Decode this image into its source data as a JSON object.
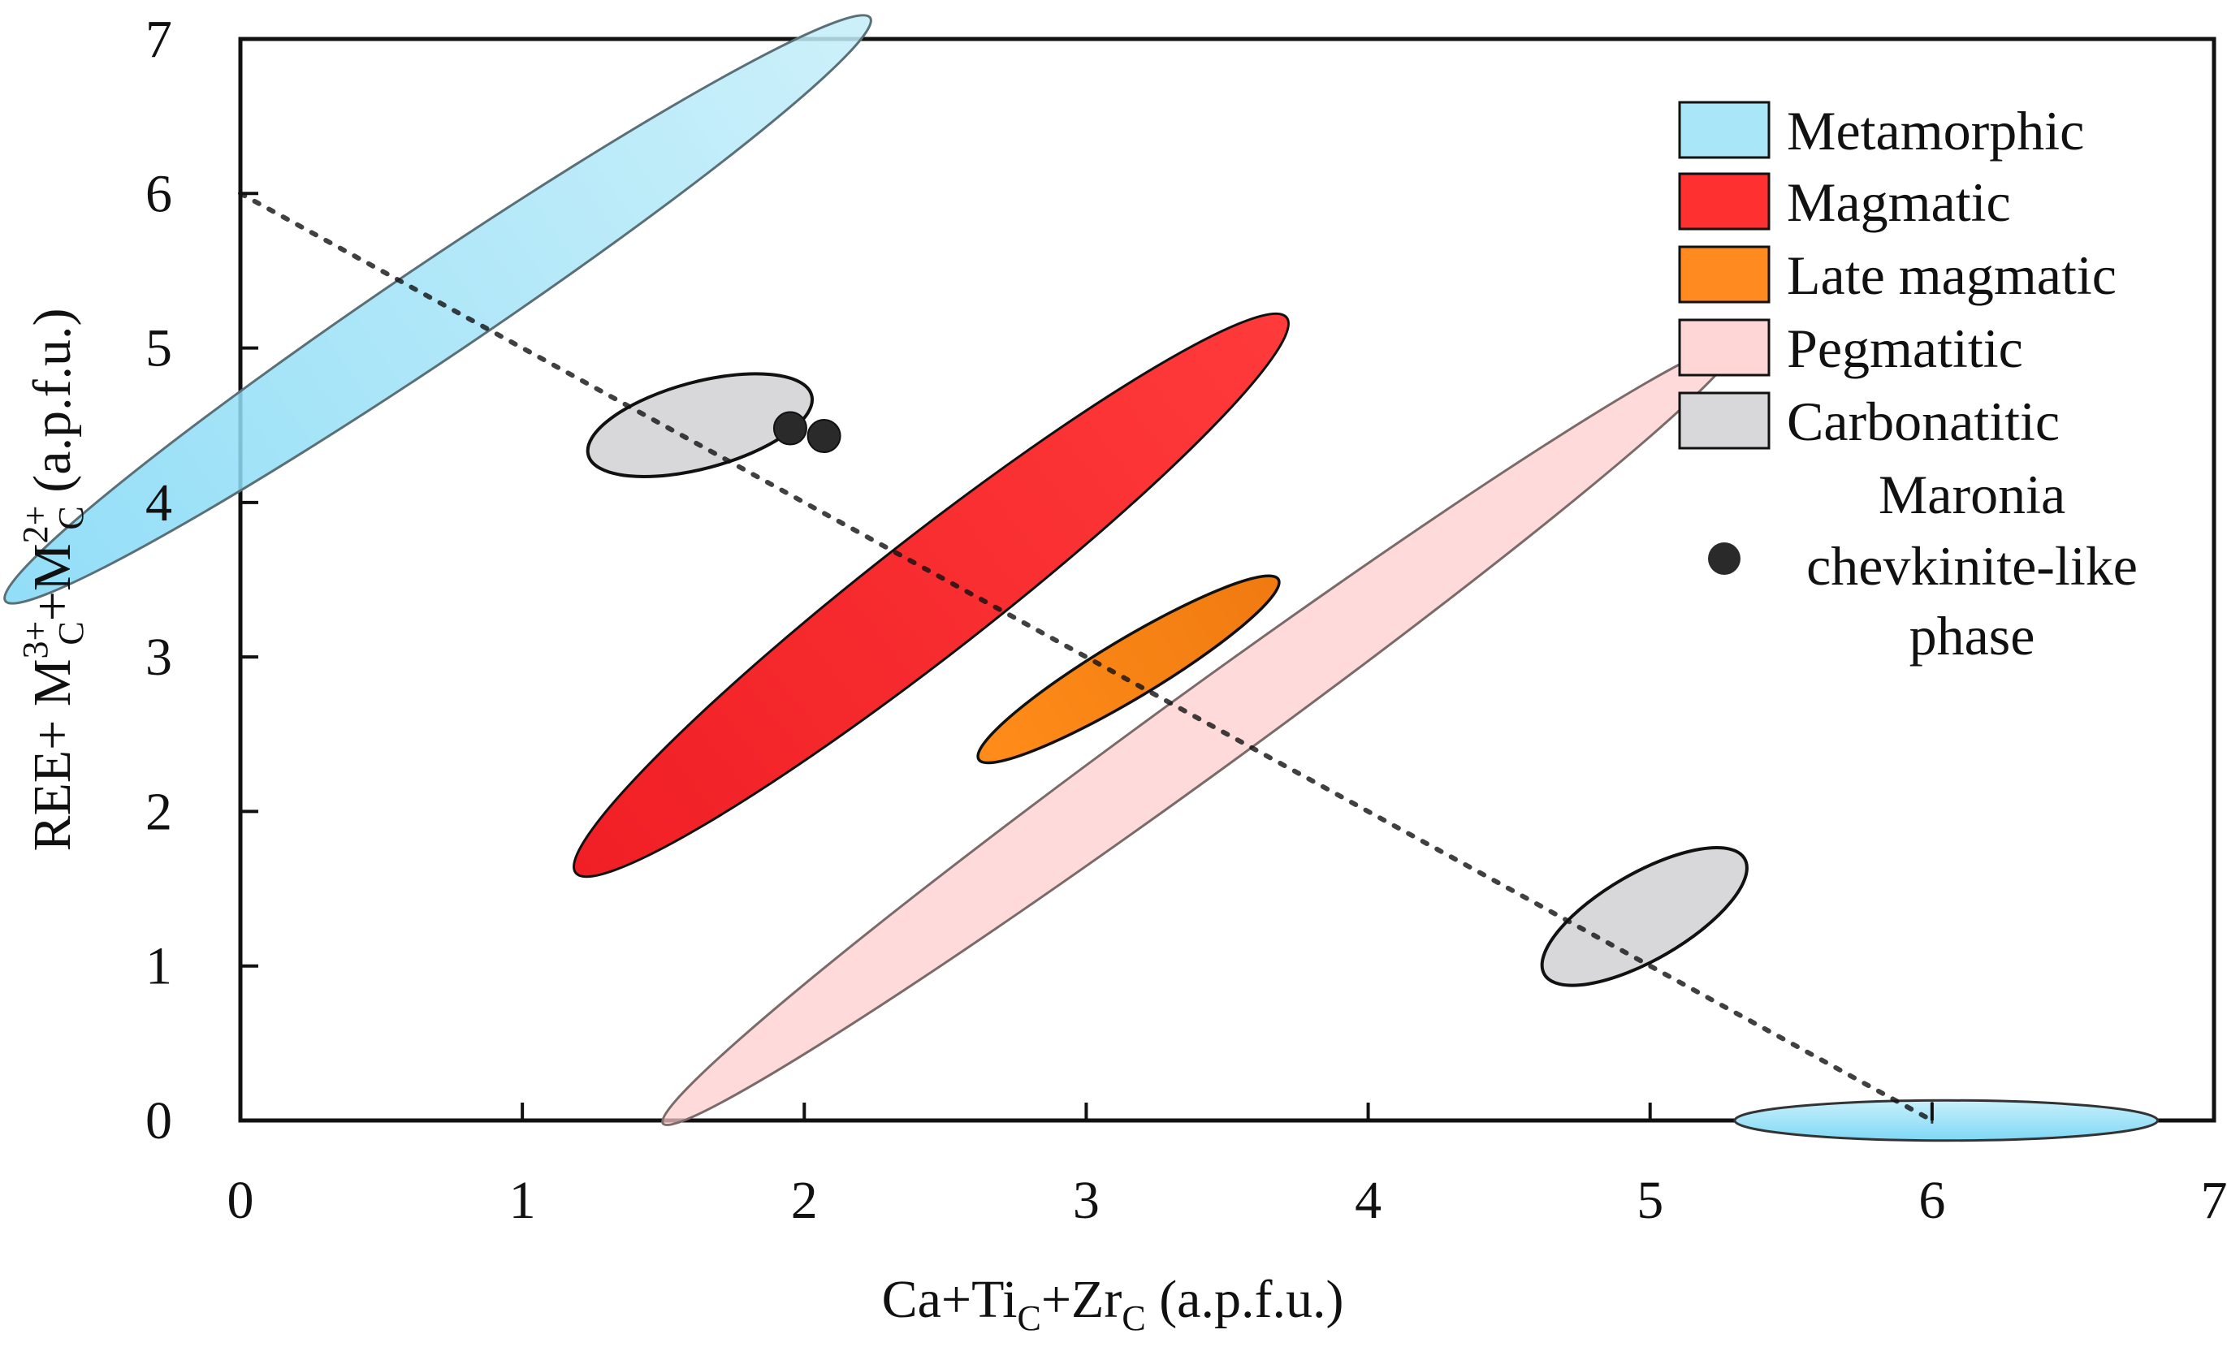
{
  "chart_data": {
    "type": "scatter",
    "title": "",
    "xlabel": {
      "base": "Ca+Ti",
      "sub1": "C",
      "mid": "+Zr",
      "sub2": "C",
      "unit": " (a.p.f.u.)"
    },
    "ylabel": {
      "t1": "REE+ M",
      "sup1": "3+",
      "sub1": "C",
      "t2": "+M",
      "sup2": "2+",
      "sub2": "C",
      "unit": " (a.p.f.u.)"
    },
    "xlim": [
      0,
      7
    ],
    "ylim": [
      0,
      7
    ],
    "xticks": [
      "0",
      "1",
      "2",
      "3",
      "4",
      "5",
      "6",
      "7"
    ],
    "yticks": [
      "0",
      "1",
      "2",
      "3",
      "4",
      "5",
      "6",
      "7"
    ],
    "trend_line": {
      "style": "dotted",
      "from": [
        0,
        6
      ],
      "to": [
        6,
        0
      ]
    },
    "fields": [
      {
        "name": "Metamorphic",
        "cx": 0.7,
        "cy": 5.25,
        "rx": 1.85,
        "ry": 0.3,
        "angle_deg": -34,
        "color": "#a8e6f8"
      },
      {
        "name": "Magmatic",
        "cx": 2.45,
        "cy": 3.4,
        "rx": 1.6,
        "ry": 0.38,
        "angle_deg": -38,
        "color": "#ff3030"
      },
      {
        "name": "Pegmatitic",
        "cx": 3.4,
        "cy": 2.5,
        "rx": 2.35,
        "ry": 0.27,
        "angle_deg": -36,
        "color": "#ffcccc"
      },
      {
        "name": "Late magmatic",
        "cx": 3.15,
        "cy": 2.92,
        "rx": 0.62,
        "ry": 0.19,
        "angle_deg": -31,
        "color": "#ff8a20"
      },
      {
        "name": "Carbonatitic",
        "cx": 1.63,
        "cy": 4.5,
        "rx": 0.41,
        "ry": 0.28,
        "angle_deg": -15,
        "color": "#d8d8da"
      },
      {
        "name": "Carbonatitic",
        "cx": 4.98,
        "cy": 1.32,
        "rx": 0.41,
        "ry": 0.28,
        "angle_deg": -30,
        "color": "#d8d8da"
      },
      {
        "name": "Metamorphic",
        "cx": 6.05,
        "cy": 0.0,
        "rx": 0.75,
        "ry": 0.13,
        "angle_deg": 0,
        "color": "#a8e6f8"
      }
    ],
    "points": [
      {
        "series": "Maronia chevkinite-like phase",
        "x": 1.95,
        "y": 4.48
      },
      {
        "series": "Maronia chevkinite-like phase",
        "x": 2.07,
        "y": 4.43
      }
    ],
    "legend": {
      "position": "top-right",
      "entries": [
        {
          "label": "Metamorphic",
          "color": "#a8e6f8",
          "kind": "box"
        },
        {
          "label": "Magmatic",
          "color": "#ff3030",
          "kind": "box"
        },
        {
          "label": "Late magmatic",
          "color": "#ff8a20",
          "kind": "box"
        },
        {
          "label": "Pegmatitic",
          "color": "#ffd6d6",
          "kind": "box"
        },
        {
          "label": "Carbonatitic",
          "color": "#d8d8da",
          "kind": "box"
        }
      ],
      "point_entry": {
        "lines": [
          "Maronia",
          "chevkinite-like",
          "phase"
        ],
        "color": "#2a2a2a",
        "kind": "dot"
      }
    }
  }
}
